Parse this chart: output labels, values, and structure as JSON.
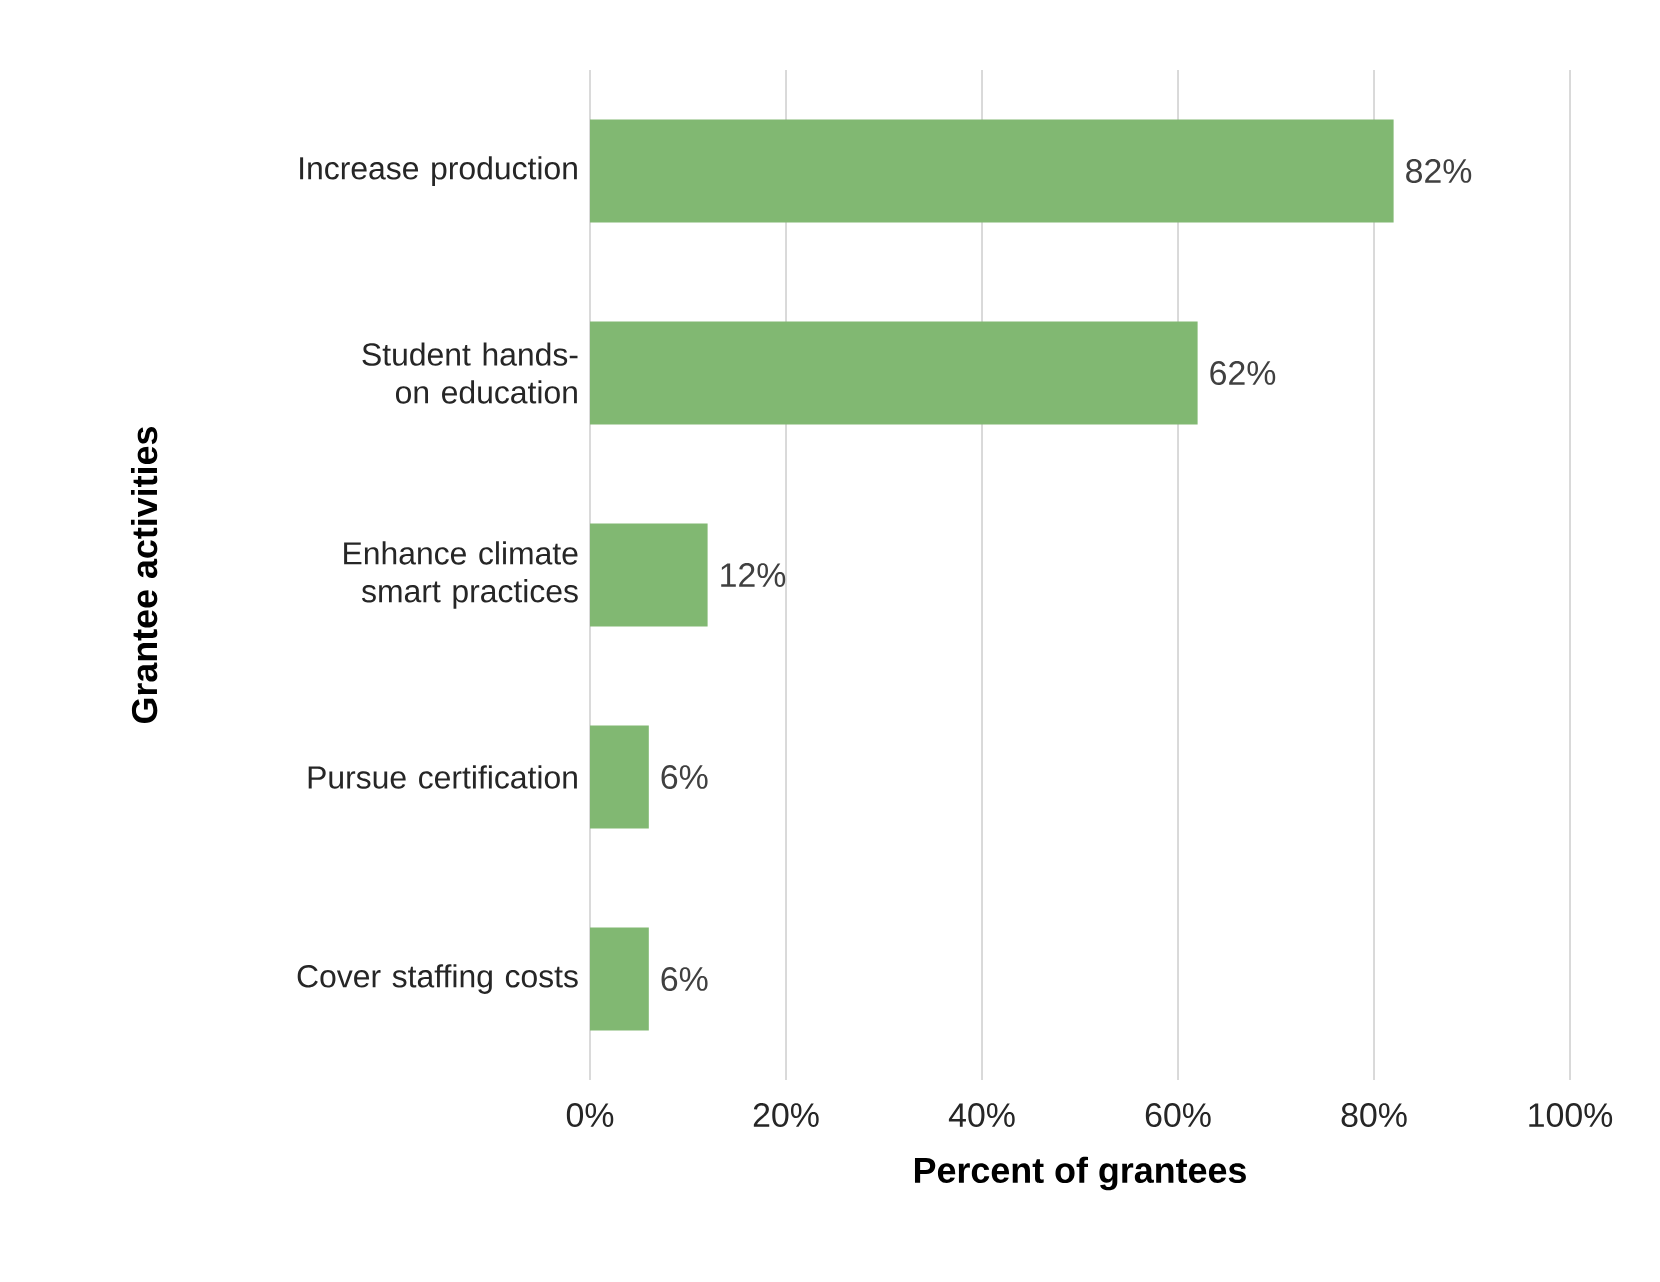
{
  "chart_data": {
    "type": "bar",
    "orientation": "horizontal",
    "categories": [
      "Increase production",
      "Student hands-on education",
      "Enhance climate smart practices",
      "Pursue certification",
      "Cover staffing costs"
    ],
    "values": [
      82,
      62,
      12,
      6,
      6
    ],
    "value_labels": [
      "82%",
      "62%",
      "12%",
      "6%",
      "6%"
    ],
    "color": "#81b872",
    "xlim": [
      0,
      100
    ],
    "xticks": [
      {
        "value": 0,
        "label": "0%"
      },
      {
        "value": 20,
        "label": "20%"
      },
      {
        "value": 40,
        "label": "40%"
      },
      {
        "value": 60,
        "label": "60%"
      },
      {
        "value": 80,
        "label": "80%"
      },
      {
        "value": 100,
        "label": "100%"
      }
    ],
    "xlabel": "Percent of grantees",
    "ylabel": "Grantee activities",
    "grid": "x"
  }
}
